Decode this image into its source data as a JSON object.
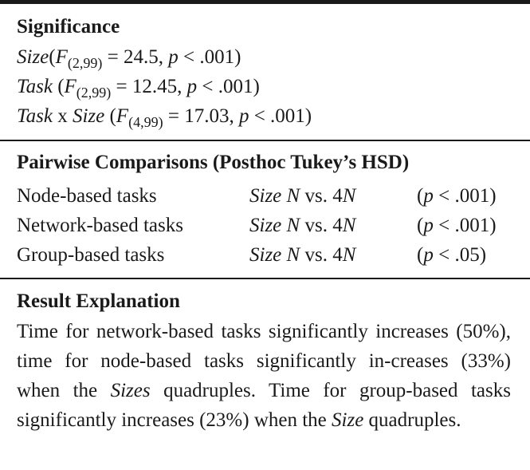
{
  "significance": {
    "heading": "Significance",
    "rows": [
      {
        "factor": "Size",
        "df": "(2,99)",
        "f_value": "24.5",
        "p": ".001"
      },
      {
        "factor": "Task",
        "df": "(2,99)",
        "f_value": "12.45",
        "p": ".001"
      },
      {
        "factor_a": "Task",
        "joiner": "x",
        "factor_b": "Size",
        "df": "(4,99)",
        "f_value": "17.03",
        "p": ".001"
      }
    ]
  },
  "pairwise": {
    "heading": "Pairwise Comparisons (Posthoc Tukey’s HSD)",
    "rows": [
      {
        "task": "Node-based tasks",
        "size_label": "Size",
        "from": "N",
        "vs": "vs. 4",
        "to": "N",
        "p": ".001"
      },
      {
        "task": "Network-based tasks",
        "size_label": "Size",
        "from": "N",
        "vs": "vs. 4",
        "to": "N",
        "p": ".001"
      },
      {
        "task": "Group-based tasks",
        "size_label": "Size",
        "from": "N",
        "vs": "vs. 4",
        "to": "N",
        "p": ".05"
      }
    ]
  },
  "result": {
    "heading": "Result Explanation",
    "part1": "Time for network-based tasks significantly increases (50%), time for node-based tasks significantly in-creases (33%) when the ",
    "emph1": "Sizes",
    "part2": " quadruples. Time for group-based tasks significantly increases (23%) when the ",
    "emph2": "Size",
    "part3": " quadruples."
  }
}
